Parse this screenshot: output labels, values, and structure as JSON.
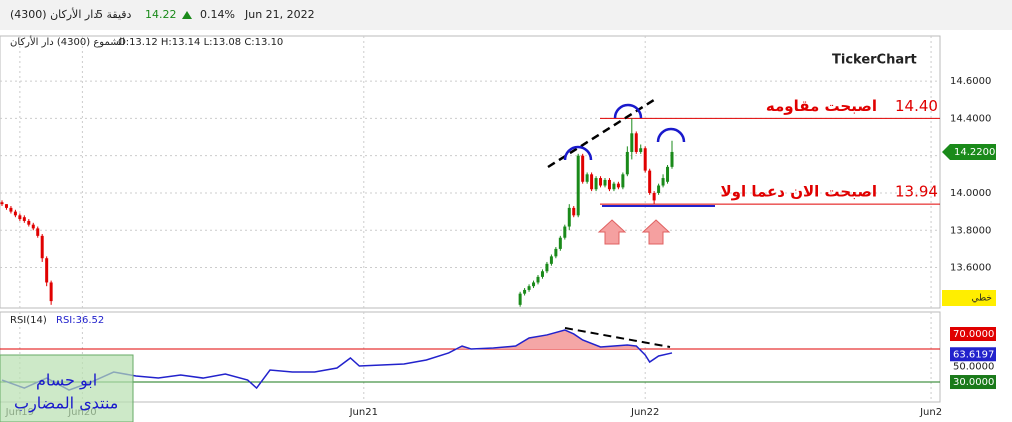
{
  "header": {
    "name": "(4300) دار الأركان",
    "interval": "5 دقيقة",
    "price": "14.22",
    "change": "0.14%",
    "date": "Jun 21, 2022"
  },
  "watermark": "TickerChart",
  "mode_label": "خطي",
  "signature": [
    "ابو حسام",
    "منتدى المضارب"
  ],
  "chart_data": [
    {
      "type": "candlestick",
      "title": "الشموع (4300) دار الأركان",
      "subtitle": "O:13.12 H:13.14 L:13.08 C:13.10",
      "x": [
        0,
        1,
        2,
        3,
        4,
        5,
        6,
        7,
        8,
        9,
        10,
        11,
        116,
        117,
        118,
        119,
        120,
        121,
        122,
        123,
        124,
        125,
        126,
        127,
        128,
        129,
        130,
        131,
        132,
        133,
        134,
        135,
        136,
        137,
        138,
        139,
        140,
        141,
        142,
        143,
        144,
        145,
        146,
        147,
        148,
        149,
        150
      ],
      "open": [
        13.95,
        13.94,
        13.92,
        13.9,
        13.88,
        13.87,
        13.85,
        13.83,
        13.81,
        13.77,
        13.65,
        13.52,
        13.4,
        13.46,
        13.48,
        13.5,
        13.52,
        13.55,
        13.58,
        13.62,
        13.66,
        13.7,
        13.76,
        13.82,
        13.92,
        13.88,
        14.2,
        14.06,
        14.1,
        14.02,
        14.08,
        14.04,
        14.07,
        14.02,
        14.05,
        14.03,
        14.1,
        14.22,
        14.32,
        14.22,
        14.24,
        14.12,
        14.0,
        14.0,
        14.04,
        14.06,
        14.14
      ],
      "high": [
        13.96,
        13.94,
        13.93,
        13.91,
        13.89,
        13.88,
        13.86,
        13.84,
        13.82,
        13.78,
        13.66,
        13.53,
        13.47,
        13.49,
        13.51,
        13.53,
        13.56,
        13.59,
        13.63,
        13.67,
        13.71,
        13.77,
        13.83,
        13.94,
        13.93,
        14.21,
        14.21,
        14.11,
        14.11,
        14.09,
        14.09,
        14.08,
        14.08,
        14.06,
        14.06,
        14.11,
        14.25,
        14.4,
        14.33,
        14.26,
        14.25,
        14.13,
        14.01,
        14.05,
        14.1,
        14.15,
        14.28
      ],
      "low": [
        13.93,
        13.91,
        13.89,
        13.87,
        13.85,
        13.84,
        13.82,
        13.8,
        13.76,
        13.63,
        13.5,
        13.4,
        13.39,
        13.45,
        13.47,
        13.49,
        13.51,
        13.54,
        13.57,
        13.61,
        13.65,
        13.69,
        13.75,
        13.8,
        13.87,
        13.87,
        14.05,
        14.05,
        14.01,
        14.01,
        14.03,
        14.03,
        14.01,
        14.01,
        14.02,
        14.02,
        14.09,
        14.18,
        14.21,
        14.21,
        14.11,
        13.99,
        13.94,
        13.99,
        14.03,
        14.05,
        14.13
      ],
      "close": [
        13.94,
        13.92,
        13.9,
        13.88,
        13.86,
        13.85,
        13.83,
        13.81,
        13.77,
        13.65,
        13.52,
        13.42,
        13.46,
        13.48,
        13.5,
        13.52,
        13.55,
        13.58,
        13.62,
        13.66,
        13.7,
        13.76,
        13.82,
        13.92,
        13.88,
        14.2,
        14.06,
        14.1,
        14.02,
        14.08,
        14.04,
        14.07,
        14.02,
        14.05,
        14.03,
        14.1,
        14.22,
        14.32,
        14.22,
        14.24,
        14.12,
        14.0,
        13.96,
        14.04,
        14.08,
        14.14,
        14.22
      ],
      "up_color": "#1a8a1a",
      "down_color": "#e00000",
      "xlim": [
        0,
        210
      ],
      "xticks": [
        {
          "value": 4,
          "label": "Jun19"
        },
        {
          "value": 18,
          "label": "Jun20"
        },
        {
          "value": 81,
          "label": "Jun21"
        },
        {
          "value": 144,
          "label": "Jun22"
        },
        {
          "value": 208,
          "label": "Jun2"
        }
      ],
      "ylim": [
        13.383,
        14.842
      ],
      "yticks": [
        {
          "value": 13.6,
          "label": "13.6000"
        },
        {
          "value": 13.8,
          "label": "13.8000"
        },
        {
          "value": 14,
          "label": "14.0000"
        },
        {
          "value": 14.2,
          "label": "14.2000"
        },
        {
          "value": 14.4,
          "label": "14.4000"
        },
        {
          "value": 14.6,
          "label": "14.6000"
        }
      ],
      "last_price": {
        "value": 14.22,
        "label": "14.2200"
      },
      "levels": [
        {
          "value": 14.4,
          "label": "14.40",
          "text": "اصبحت مقاومه",
          "color": "#e00000"
        },
        {
          "value": 13.94,
          "label": "13.94",
          "text": "اصبحت الان دعما اولا",
          "color": "#e00000"
        },
        {
          "value": 13.93,
          "color": "#2222cc"
        }
      ],
      "grid": true
    },
    {
      "type": "line",
      "title": "RSI(14)",
      "subtitle": "RSI:36.52",
      "x": [
        0,
        5,
        10,
        15,
        20,
        25,
        30,
        35,
        40,
        45,
        50,
        55,
        57,
        60,
        65,
        70,
        75,
        78,
        80,
        85,
        90,
        95,
        100,
        103,
        105,
        110,
        115,
        118,
        122,
        126,
        128,
        130,
        134,
        137,
        140,
        142,
        144,
        145,
        147,
        150
      ],
      "values": [
        32.4,
        22.7,
        34.8,
        20.3,
        30.0,
        42.1,
        37.3,
        34.8,
        38.5,
        34.8,
        39.7,
        32.4,
        22.7,
        44.5,
        42.1,
        42.1,
        47.0,
        59.1,
        49.4,
        50.6,
        51.8,
        56.7,
        65.2,
        73.6,
        70.0,
        71.2,
        73.6,
        83.3,
        87.0,
        93.0,
        88.2,
        80.9,
        72.4,
        73.6,
        74.8,
        73.6,
        62.7,
        54.2,
        61.5,
        65.2
      ],
      "color": "#2222cc",
      "xlim": [
        0,
        210
      ],
      "ylim": [
        5.8,
        114.8
      ],
      "yticks": [
        {
          "value": 30,
          "label": "30.0000"
        },
        {
          "value": 50,
          "label": "50.0000"
        },
        {
          "value": 70,
          "label": "70.0000"
        }
      ],
      "last_value": 63.6197
    }
  ]
}
